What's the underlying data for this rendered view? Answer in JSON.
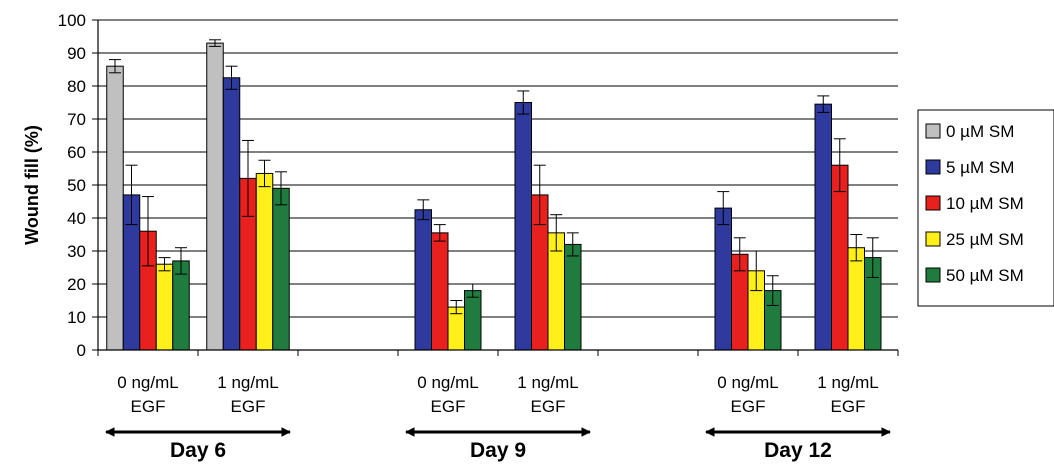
{
  "chart_data": {
    "type": "bar",
    "ylabel": "Wound fill (%)",
    "ylim": [
      0,
      100
    ],
    "yticks": [
      "0",
      "10",
      "20",
      "30",
      "40",
      "50",
      "60",
      "70",
      "80",
      "90",
      "100"
    ],
    "grid": true,
    "legend_position": "right",
    "categories": [
      {
        "line1": "0 ng/mL",
        "line2": "EGF"
      },
      {
        "line1": "1 ng/mL",
        "line2": "EGF"
      },
      {
        "line1": "",
        "line2": ""
      },
      {
        "line1": "0 ng/mL",
        "line2": "EGF"
      },
      {
        "line1": "1 ng/mL",
        "line2": "EGF"
      },
      {
        "line1": "",
        "line2": ""
      },
      {
        "line1": "0 ng/mL",
        "line2": "EGF"
      },
      {
        "line1": "1 ng/mL",
        "line2": "EGF"
      }
    ],
    "groups": [
      {
        "label": "Day 6",
        "categories": [
          0,
          1
        ]
      },
      {
        "label": "Day 9",
        "categories": [
          3,
          4
        ]
      },
      {
        "label": "Day 12",
        "categories": [
          6,
          7
        ]
      }
    ],
    "series": [
      {
        "name": "0 µM SM",
        "color": "#c0c0c0",
        "values": [
          86,
          93,
          null,
          null,
          null,
          null,
          null,
          null
        ],
        "errors": [
          2,
          1,
          null,
          null,
          null,
          null,
          null,
          null
        ]
      },
      {
        "name": "5 µM SM",
        "color": "#2e3a9e",
        "values": [
          47,
          82.5,
          null,
          42.5,
          75,
          null,
          43,
          74.5
        ],
        "errors": [
          9,
          3.5,
          null,
          3,
          3.5,
          null,
          5,
          2.5
        ]
      },
      {
        "name": "10 µM SM",
        "color": "#e8201e",
        "values": [
          36,
          52,
          null,
          35.5,
          47,
          null,
          29,
          56
        ],
        "errors": [
          10.5,
          11.5,
          null,
          2.5,
          9,
          null,
          5,
          8
        ]
      },
      {
        "name": "25 µM SM",
        "color": "#ffef1a",
        "values": [
          26,
          53.5,
          null,
          13,
          35.5,
          null,
          24,
          31
        ],
        "errors": [
          2,
          4,
          null,
          2,
          5.5,
          null,
          6,
          4
        ]
      },
      {
        "name": "50 µM SM",
        "color": "#1f7c3e",
        "values": [
          27,
          49,
          null,
          18,
          32,
          null,
          18,
          28
        ],
        "errors": [
          4,
          5,
          null,
          2,
          3.5,
          null,
          4.5,
          6
        ]
      }
    ]
  }
}
